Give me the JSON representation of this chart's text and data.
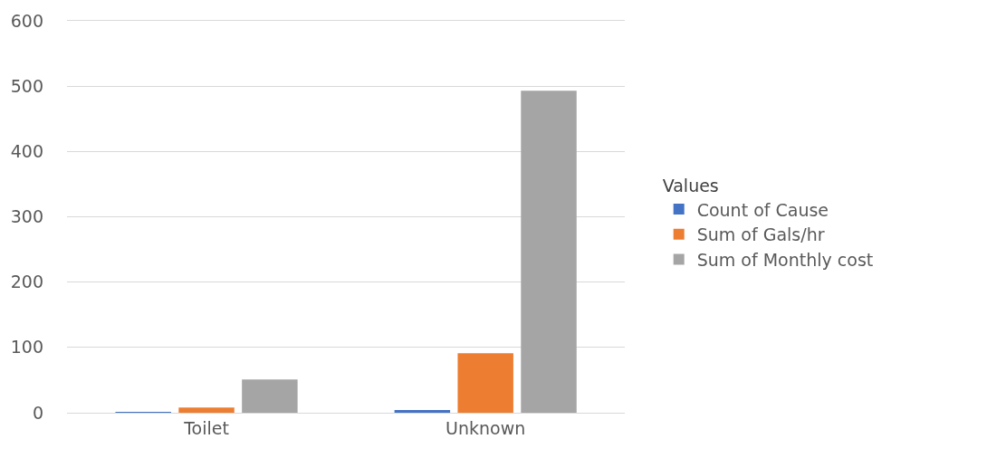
{
  "chart_data": {
    "type": "bar",
    "categories": [
      "Toilet",
      "Unknown"
    ],
    "series": [
      {
        "name": "Count of Cause",
        "color": "#4472c4",
        "values": [
          1,
          4
        ]
      },
      {
        "name": "Sum of Gals/hr",
        "color": "#ed7d31",
        "values": [
          8,
          91
        ]
      },
      {
        "name": "Sum of Monthly cost",
        "color": "#a5a5a5",
        "values": [
          51,
          493
        ]
      }
    ],
    "ylim": [
      0,
      600
    ],
    "yticks": [
      0,
      100,
      200,
      300,
      400,
      500,
      600
    ],
    "grid": "y",
    "legend": "right",
    "legend_title": "Values"
  }
}
